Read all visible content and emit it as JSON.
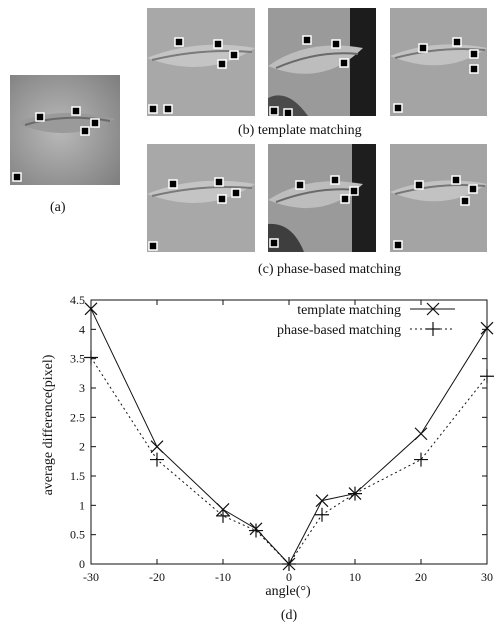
{
  "captions": {
    "a": "(a)",
    "b": "(b) template matching",
    "c": "(c) phase-based matching",
    "d": "(d)"
  },
  "chart_data": {
    "type": "line",
    "xlabel": "angle(°)",
    "ylabel": "average difference(pixel)",
    "xlim": [
      -30,
      30
    ],
    "ylim": [
      0,
      4.5
    ],
    "xticks": [
      "-30",
      "-20",
      "-10",
      "0",
      "10",
      "20",
      "30"
    ],
    "yticks": [
      "0",
      "0.5",
      "1",
      "1.5",
      "2",
      "2.5",
      "3",
      "3.5",
      "4",
      "4.5"
    ],
    "x": [
      -30,
      -20,
      -10,
      -5,
      0,
      5,
      10,
      20,
      30
    ],
    "legend_position": "top-right",
    "grid": false,
    "series": [
      {
        "name": "template matching",
        "marker": "x",
        "line": "solid",
        "values": [
          4.35,
          2.0,
          0.93,
          0.6,
          0.0,
          1.08,
          1.2,
          2.22,
          4.02
        ]
      },
      {
        "name": "phase-based matching",
        "marker": "+",
        "line": "dotted",
        "values": [
          3.52,
          1.78,
          0.82,
          0.57,
          0.0,
          0.84,
          1.2,
          1.78,
          3.2
        ]
      }
    ]
  }
}
